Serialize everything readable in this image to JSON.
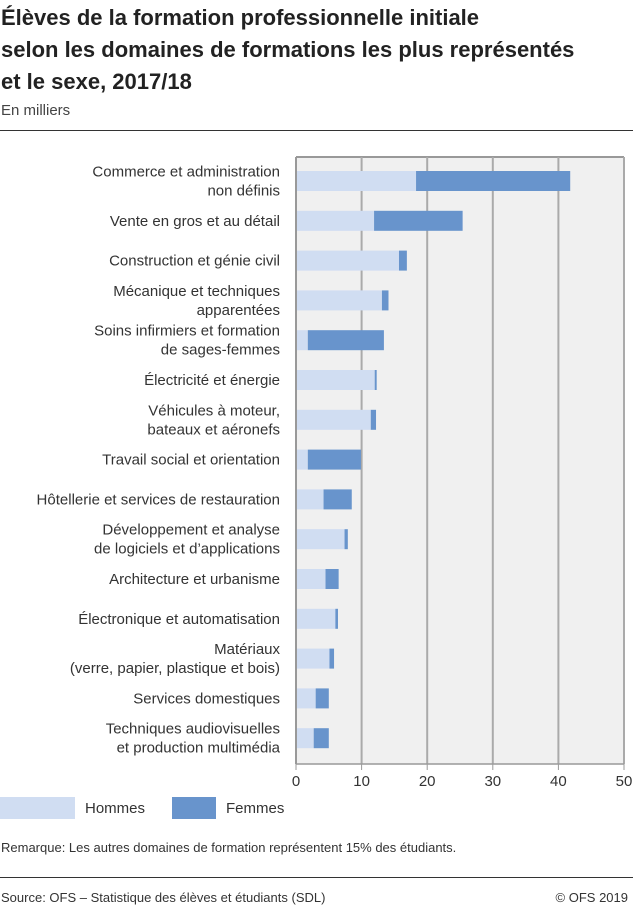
{
  "title_lines": [
    "Élèves de la formation professionnelle initiale",
    "selon les domaines de formations les plus représentés",
    "et le sexe, 2017/18"
  ],
  "subtitle": "En milliers",
  "remark": "Remarque: Les autres domaines de formation représentent 15% des étudiants.",
  "source": "Source: OFS – Statistique des élèves et étudiants (SDL)",
  "copyright": "© OFS 2019",
  "colors": {
    "hommes": "#d0ddf2",
    "femmes": "#6894cc",
    "plot_bg": "#f0f0f0",
    "grid": "#aaaaaa"
  },
  "chart_data": {
    "type": "bar",
    "orientation": "horizontal",
    "stacked": true,
    "categories": [
      [
        "Commerce et administration",
        "non définis"
      ],
      [
        "Vente en gros et au détail"
      ],
      [
        "Construction et génie civil"
      ],
      [
        "Mécanique et techniques",
        "apparentées"
      ],
      [
        "Soins infirmiers et formation",
        "de sages-femmes"
      ],
      [
        "Électricité et énergie"
      ],
      [
        "Véhicules à moteur,",
        "bateaux et aéronefs"
      ],
      [
        "Travail social et orientation"
      ],
      [
        "Hôtellerie et services de restauration"
      ],
      [
        "Développement et analyse",
        "de logiciels et d’applications"
      ],
      [
        "Architecture et urbanisme"
      ],
      [
        "Électronique et automatisation"
      ],
      [
        "Matériaux",
        "(verre, papier, plastique et bois)"
      ],
      [
        "Services domestiques"
      ],
      [
        "Techniques audiovisuelles",
        "et production multimédia"
      ]
    ],
    "series": [
      {
        "name": "Hommes",
        "values": [
          18.3,
          11.9,
          15.7,
          13.1,
          1.8,
          12.0,
          11.4,
          1.8,
          4.2,
          7.4,
          4.5,
          6.0,
          5.1,
          3.0,
          2.7
        ]
      },
      {
        "name": "Femmes",
        "values": [
          23.5,
          13.5,
          1.2,
          1.0,
          11.6,
          0.3,
          0.8,
          8.1,
          4.3,
          0.5,
          2.0,
          0.4,
          0.7,
          2.0,
          2.3
        ]
      }
    ],
    "xlim": [
      0,
      50
    ],
    "xticks": [
      0,
      10,
      20,
      30,
      40,
      50
    ],
    "grid": true,
    "legend": "bottom"
  }
}
